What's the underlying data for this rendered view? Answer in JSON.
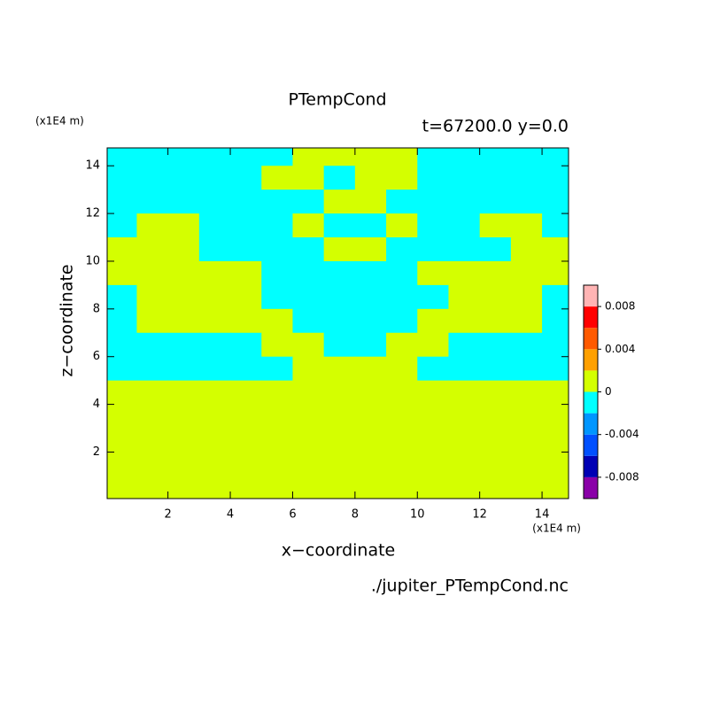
{
  "chart_data": {
    "type": "contour",
    "title": "PTempCond",
    "subtitle": "t=67200.0 y=0.0",
    "x_unit": "(x1E4 m)",
    "y_unit": "(x1E4 m)",
    "x_label": "x−coordinate",
    "y_label": "z−coordinate",
    "source": "./jupiter_PTempCond.nc",
    "xlim": [
      0.05,
      14.85
    ],
    "ylim": [
      0.05,
      14.75
    ],
    "xticks": [
      2,
      4,
      6,
      8,
      10,
      12,
      14
    ],
    "yticks": [
      2,
      4,
      6,
      8,
      10,
      12,
      14
    ],
    "x": [
      0.5,
      1.5,
      2.5,
      3.5,
      4.5,
      5.5,
      6.5,
      7.5,
      8.5,
      9.5,
      10.5,
      11.5,
      12.5,
      13.5,
      14.5
    ],
    "y": [
      14.5,
      13.5,
      12.5,
      11.5,
      10.5,
      9.5,
      8.5,
      7.5,
      6.5,
      5.5,
      4.5,
      3.5,
      2.5,
      1.5,
      0.5
    ],
    "z": [
      [
        -0.001,
        -0.001,
        -0.001,
        -0.001,
        -0.001,
        -0.001,
        0.001,
        0.001,
        0.001,
        0.001,
        -0.001,
        -0.001,
        -0.001,
        -0.001,
        -0.001
      ],
      [
        -0.001,
        -0.001,
        -0.001,
        -0.001,
        -0.001,
        0.001,
        0.001,
        -0.001,
        0.001,
        0.001,
        -0.001,
        -0.001,
        -0.001,
        -0.001,
        -0.001
      ],
      [
        -0.001,
        -0.001,
        -0.001,
        -0.001,
        -0.001,
        -0.001,
        -0.001,
        0.001,
        0.001,
        -0.001,
        -0.001,
        -0.001,
        -0.001,
        -0.001,
        -0.001
      ],
      [
        -0.001,
        0.001,
        0.001,
        -0.001,
        -0.001,
        -0.001,
        0.001,
        -0.001,
        -0.001,
        0.001,
        -0.001,
        -0.001,
        0.001,
        0.001,
        -0.001
      ],
      [
        0.001,
        0.001,
        0.001,
        -0.001,
        -0.001,
        -0.001,
        -0.001,
        0.001,
        0.001,
        -0.001,
        -0.001,
        -0.001,
        -0.001,
        0.001,
        0.001
      ],
      [
        0.001,
        0.001,
        0.001,
        0.001,
        0.001,
        -0.001,
        -0.001,
        -0.001,
        -0.001,
        -0.001,
        0.001,
        0.001,
        0.001,
        0.001,
        0.001
      ],
      [
        -0.001,
        0.001,
        0.001,
        0.001,
        0.001,
        -0.001,
        -0.001,
        -0.001,
        -0.001,
        -0.001,
        -0.001,
        0.001,
        0.001,
        0.001,
        -0.001
      ],
      [
        -0.001,
        0.001,
        0.001,
        0.001,
        0.001,
        0.001,
        -0.001,
        -0.001,
        -0.001,
        -0.001,
        0.001,
        0.001,
        0.001,
        0.001,
        -0.001
      ],
      [
        -0.001,
        -0.001,
        -0.001,
        -0.001,
        -0.001,
        0.001,
        0.001,
        -0.001,
        -0.001,
        0.001,
        0.001,
        -0.001,
        -0.001,
        -0.001,
        -0.001
      ],
      [
        -0.001,
        -0.001,
        -0.001,
        -0.001,
        -0.001,
        -0.001,
        0.001,
        0.001,
        0.001,
        0.001,
        -0.001,
        -0.001,
        -0.001,
        -0.001,
        -0.001
      ],
      [
        0.001,
        0.001,
        0.001,
        0.001,
        0.001,
        0.001,
        0.001,
        0.001,
        0.001,
        0.001,
        0.001,
        0.001,
        0.001,
        0.001,
        0.001
      ],
      [
        0.001,
        0.001,
        0.001,
        0.001,
        0.001,
        0.001,
        0.001,
        0.001,
        0.001,
        0.001,
        0.001,
        0.001,
        0.001,
        0.001,
        0.001
      ],
      [
        0.001,
        0.001,
        0.001,
        0.001,
        0.001,
        0.001,
        0.001,
        0.001,
        0.001,
        0.001,
        0.001,
        0.001,
        0.001,
        0.001,
        0.001
      ],
      [
        0.001,
        0.001,
        0.001,
        0.001,
        0.001,
        0.001,
        0.001,
        0.001,
        0.001,
        0.001,
        0.001,
        0.001,
        0.001,
        0.001,
        0.001
      ],
      [
        0.001,
        0.001,
        0.001,
        0.001,
        0.001,
        0.001,
        0.001,
        0.001,
        0.001,
        0.001,
        0.001,
        0.001,
        0.001,
        0.001,
        0.001
      ]
    ],
    "levels": [
      -0.01,
      -0.008,
      -0.006,
      -0.004,
      -0.002,
      0,
      0.002,
      0.004,
      0.006,
      0.008,
      0.01
    ],
    "colors": [
      "#8a00a8",
      "#0000b4",
      "#0050ff",
      "#0096ff",
      "#00ffff",
      "#d4ff00",
      "#ffa000",
      "#ff5a00",
      "#ff0000",
      "#ffb4b4"
    ],
    "colorbar_ticks": [
      -0.008,
      -0.004,
      0,
      0.004,
      0.008
    ]
  }
}
